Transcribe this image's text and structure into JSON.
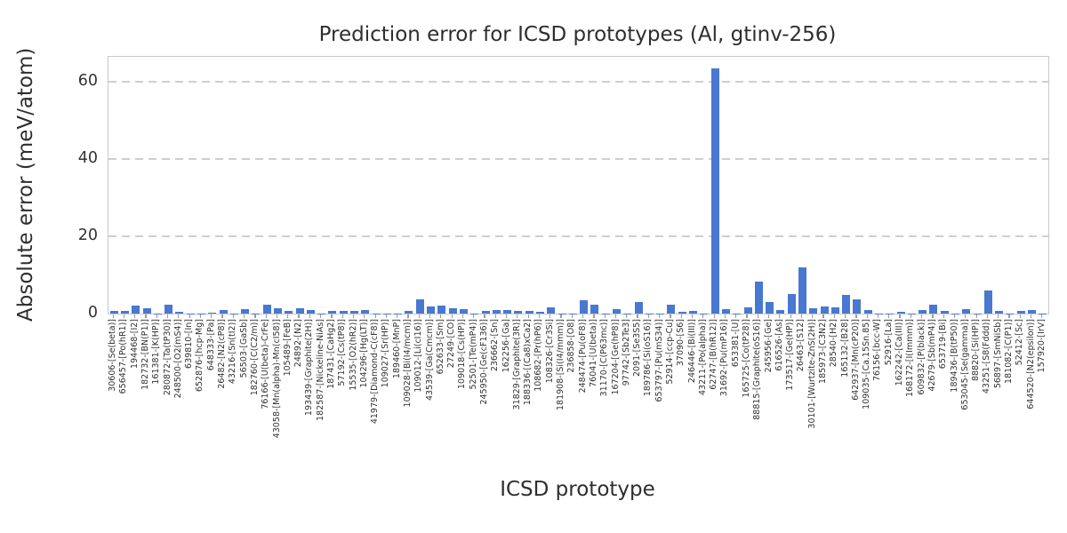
{
  "chart_data": {
    "type": "bar",
    "title": "Prediction error for ICSD prototypes (Al, gtinv-256)",
    "xlabel": "ICSD prototype",
    "ylabel": "Absolute error (meV/atom)",
    "ylim": [
      0,
      66.5
    ],
    "yticks": [
      0,
      20,
      40,
      60
    ],
    "grid": "horizontal-dashed",
    "legend": "none",
    "bar_color": "#4878d0",
    "grid_color": "#cfcfcf",
    "categories": [
      "30606-[Se(beta)]",
      "656457-[Po(hR1)]",
      "194468-[I2]",
      "182732-[BN(P1)]",
      "161381-[K(HP)]",
      "280872-[Ta(tP30)]",
      "248500-[O2(mS4)]",
      "639810-[In]",
      "652876-[hcp-Mg]",
      "648333-[Pa]",
      "26482-[N2(cP8)]",
      "43216-[Sn(tI2)]",
      "56503-[GaSb]",
      "182760-[C(C2/m)]",
      "76166-[U(beta)-CrFe]",
      "43058-[Mn(alpha)-Mn(cI58)]",
      "105489-[FeB]",
      "24892-[N2]",
      "193439-[Graphite(2H)]",
      "182587-[Nickeline-NiAs]",
      "187431-[CaHg2]",
      "57192-[Cs(tP8)]",
      "15535-[O2(hR2)]",
      "104296-[Hg(LT)]",
      "41979-[Diamond-C(cF8)]",
      "109027-[Sr(HP)]",
      "189460-[MnP]",
      "109028-[Bi(I4/mcm)]",
      "109012-[Li(cI16)]",
      "43539-[Ga(Cmcm)]",
      "652633-[Sm]",
      "27249-[CO]",
      "109018-[Cs(HP)]",
      "52501-[Te(mP4)]",
      "245950-[Ge(cF136)]",
      "236662-[Sn]",
      "162256-[Ga]",
      "31829-[Graphite(3R)]",
      "188336-[(Ca8)xCa2]",
      "108682-[Pr(hP6)]",
      "108326-[Cr3Si]",
      "181908-[Si(I4/mmm)]",
      "236858-[O8]",
      "248474-[Pu(oF8)]",
      "76041-[U(beta)]",
      "31170-[C(P63mc)]",
      "167204-[Ge(hP8)]",
      "97742-[Sb2Te3]",
      "2091-[Se3S5]",
      "189786-[Si(oS16)]",
      "653797-[Pu(mS34)]",
      "52914-[ccp-Cu]",
      "37090-[S6]",
      "246446-[Bi(III)]",
      "43211-[Po(alpha)]",
      "62747-[B(hR12)]",
      "31692-[Pu(mP16)]",
      "653381-[U]",
      "165725-[Co(tP28)]",
      "88815-[Graphite(oS16)]",
      "245956-[Ge]",
      "616526-[As]",
      "173517-[Ge(HP)]",
      "26463-[S12]",
      "30101-[Wurtzite-ZnS(2H)]",
      "185973-[C3N2]",
      "28540-[H2]",
      "165132-[B28]",
      "642937-[Mn(cP20)]",
      "109035-[Ca.15Sn.85]",
      "76156-[bcc-W]",
      "52916-[La]",
      "162242-[Ca(III)]",
      "168172-[I(Immm)]",
      "609832-[P(black)]",
      "42679-[Sb(mP4)]",
      "653719-[Bi]",
      "189436-[B(tP50)]",
      "653045-[Se(gamma)]",
      "88820-[Si(HP)]",
      "43251-[S8(Fddd)]",
      "56897-[SmNiSb]",
      "181082-[C(P1)]",
      "52412-[Sc]",
      "644520-[N2(epsilon)]",
      "157920-[IrV]"
    ],
    "values": [
      0.8,
      0.6,
      2.0,
      1.4,
      0.1,
      2.3,
      0.4,
      0.1,
      0.1,
      0.3,
      0.9,
      0.1,
      1.1,
      0.1,
      2.3,
      1.4,
      0.6,
      1.3,
      0.9,
      0.1,
      0.6,
      0.8,
      0.8,
      0.9,
      0.1,
      0.1,
      0.1,
      0.8,
      3.6,
      1.9,
      2.1,
      1.3,
      1.1,
      0.1,
      0.6,
      1.0,
      1.0,
      0.6,
      0.8,
      0.5,
      1.5,
      0.1,
      0.1,
      3.5,
      2.2,
      0.1,
      1.2,
      0.1,
      3.1,
      0.1,
      0.1,
      2.2,
      0.5,
      0.6,
      0.1,
      63.5,
      1.2,
      0.1,
      1.6,
      8.2,
      2.9,
      1.0,
      5.0,
      12.0,
      1.4,
      1.9,
      1.6,
      4.8,
      3.7,
      1.0,
      0.1,
      0.1,
      0.4,
      0.1,
      1.0,
      2.3,
      0.6,
      0.1,
      1.2,
      0.1,
      6.0,
      0.8,
      0.1,
      0.6,
      1.0,
      0.1
    ]
  }
}
